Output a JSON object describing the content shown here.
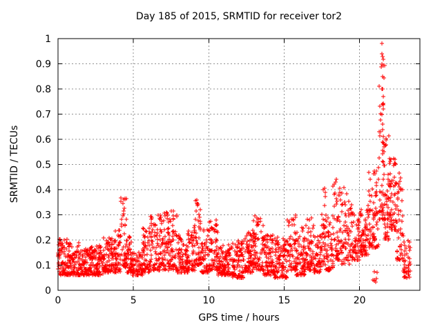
{
  "chart_data": {
    "type": "scatter",
    "title": "Day 185 of 2015, SRMTID for receiver tor2",
    "xlabel": "GPS time / hours",
    "ylabel": "SRMTID / TECUs",
    "xlim": [
      0,
      24
    ],
    "ylim": [
      0,
      1
    ],
    "xtick_values": [
      0,
      5,
      10,
      15,
      20
    ],
    "xtick_labels": [
      "0",
      "5",
      "10",
      "15",
      "20"
    ],
    "ytick_values": [
      0,
      0.1,
      0.2,
      0.3,
      0.4,
      0.5,
      0.6,
      0.7,
      0.8,
      0.9,
      1
    ],
    "ytick_labels": [
      "0",
      "0.1",
      "0.2",
      "0.3",
      "0.4",
      "0.5",
      "0.6",
      "0.7",
      "0.8",
      "0.9",
      "1"
    ],
    "grid": true,
    "grid_style": "dashed",
    "legend": "none",
    "marker": {
      "glyph": "+",
      "color": "#ff0000",
      "size": 7
    },
    "frame_color": "#000000",
    "grid_color": "#909090",
    "background_color": "#ffffff",
    "n_points_estimate": 2600,
    "synthesis": {
      "seed": 20150185,
      "exponent": 1.7,
      "epoch_hours": 0.008333,
      "note": "segments are [t_start_h, t_end_h, n_points, y_min_TECU, y_max_TECU] envelopes read from the plot"
    },
    "segments": [
      [
        0.0,
        0.6,
        70,
        0.06,
        0.21
      ],
      [
        0.6,
        1.4,
        95,
        0.06,
        0.19
      ],
      [
        1.4,
        2.2,
        95,
        0.06,
        0.17
      ],
      [
        2.2,
        3.0,
        95,
        0.06,
        0.18
      ],
      [
        3.0,
        3.8,
        95,
        0.07,
        0.21
      ],
      [
        3.8,
        4.15,
        40,
        0.07,
        0.24
      ],
      [
        4.15,
        4.55,
        48,
        0.09,
        0.37
      ],
      [
        4.55,
        4.9,
        40,
        0.07,
        0.22
      ],
      [
        4.9,
        5.6,
        70,
        0.06,
        0.15
      ],
      [
        5.6,
        6.1,
        55,
        0.07,
        0.25
      ],
      [
        6.1,
        7.0,
        100,
        0.08,
        0.3
      ],
      [
        7.0,
        7.9,
        100,
        0.08,
        0.32
      ],
      [
        7.9,
        8.6,
        75,
        0.07,
        0.22
      ],
      [
        8.6,
        9.1,
        55,
        0.08,
        0.26
      ],
      [
        9.1,
        9.5,
        48,
        0.1,
        0.38
      ],
      [
        9.5,
        10.0,
        55,
        0.07,
        0.25
      ],
      [
        10.0,
        10.6,
        65,
        0.08,
        0.28
      ],
      [
        10.6,
        11.5,
        100,
        0.06,
        0.19
      ],
      [
        11.5,
        12.3,
        90,
        0.05,
        0.2
      ],
      [
        12.3,
        12.9,
        65,
        0.07,
        0.24
      ],
      [
        12.9,
        13.6,
        80,
        0.08,
        0.3
      ],
      [
        13.6,
        14.4,
        90,
        0.06,
        0.22
      ],
      [
        14.4,
        15.2,
        90,
        0.05,
        0.21
      ],
      [
        15.2,
        15.8,
        65,
        0.08,
        0.3
      ],
      [
        15.8,
        16.4,
        65,
        0.06,
        0.25
      ],
      [
        16.4,
        17.0,
        65,
        0.08,
        0.29
      ],
      [
        17.0,
        17.45,
        50,
        0.07,
        0.22
      ],
      [
        17.45,
        17.75,
        35,
        0.1,
        0.44
      ],
      [
        17.75,
        18.25,
        50,
        0.08,
        0.3
      ],
      [
        18.25,
        18.65,
        45,
        0.12,
        0.45
      ],
      [
        18.65,
        19.35,
        70,
        0.1,
        0.41
      ],
      [
        19.35,
        20.1,
        75,
        0.12,
        0.34
      ],
      [
        20.1,
        20.6,
        60,
        0.14,
        0.36
      ],
      [
        20.6,
        21.25,
        75,
        0.17,
        0.48
      ],
      [
        20.85,
        21.15,
        8,
        0.03,
        0.09
      ],
      [
        21.25,
        21.65,
        55,
        0.28,
        0.95
      ],
      [
        21.65,
        22.0,
        48,
        0.2,
        0.62
      ],
      [
        22.0,
        22.45,
        60,
        0.24,
        0.53
      ],
      [
        22.45,
        22.9,
        50,
        0.12,
        0.47
      ],
      [
        22.9,
        23.35,
        40,
        0.05,
        0.2
      ]
    ],
    "notable_points": [
      [
        21.47,
        0.98
      ],
      [
        21.5,
        0.94
      ],
      [
        21.51,
        0.93
      ],
      [
        21.48,
        0.9
      ],
      [
        21.53,
        0.85
      ],
      [
        21.5,
        0.8
      ],
      [
        21.55,
        0.77
      ],
      [
        21.52,
        0.74
      ],
      [
        21.56,
        0.72
      ],
      [
        21.5,
        0.7
      ],
      [
        21.54,
        0.66
      ],
      [
        21.58,
        0.61
      ],
      [
        21.6,
        0.57
      ],
      [
        21.62,
        0.55
      ]
    ]
  }
}
